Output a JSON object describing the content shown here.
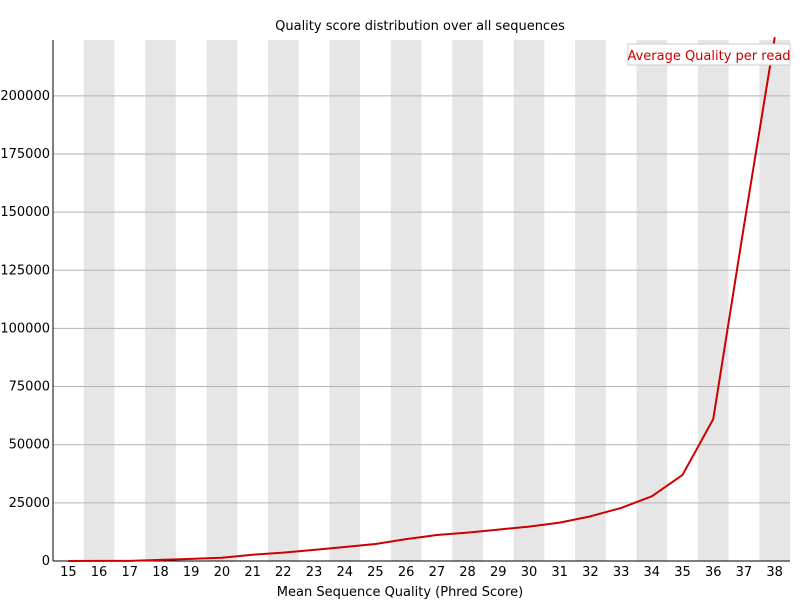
{
  "chart_data": {
    "type": "line",
    "title": "Quality score distribution over all sequences",
    "xlabel": "Mean Sequence Quality (Phred Score)",
    "ylabel": "",
    "categories": [
      "15",
      "16",
      "17",
      "18",
      "19",
      "20",
      "21",
      "22",
      "23",
      "24",
      "25",
      "26",
      "27",
      "28",
      "29",
      "30",
      "31",
      "32",
      "33",
      "34",
      "35",
      "36",
      "37",
      "38"
    ],
    "y_ticks": [
      "0",
      "25000",
      "50000",
      "75000",
      "100000",
      "125000",
      "150000",
      "175000",
      "200000"
    ],
    "ylim": [
      0,
      224000
    ],
    "grid": true,
    "alternating_column_bands": true,
    "legend": {
      "position": "top-right"
    },
    "series": [
      {
        "name": "Average Quality per read",
        "color": "#cc0000",
        "values": [
          20,
          30,
          50,
          500,
          900,
          1400,
          2700,
          3600,
          4800,
          6000,
          7300,
          9400,
          11200,
          12200,
          13500,
          14800,
          16500,
          19200,
          22800,
          27800,
          37000,
          61000,
          144000,
          225000
        ]
      }
    ]
  },
  "colors": {
    "band": "#e6e6e6",
    "gridline": "#b3b3b3",
    "axis": "#000000",
    "line": "#cc0000"
  }
}
